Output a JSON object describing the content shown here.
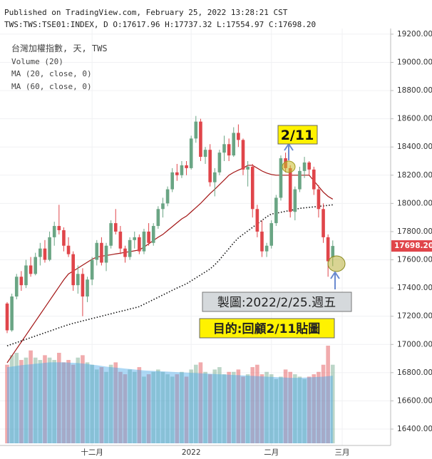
{
  "chart_data": {
    "type": "candlestick",
    "published": "Published on TradingView.com, February 25, 2022 13:28:21 CST",
    "symbol_line": "TWS:TWS:TSE01:INDEX, D O:17617.96 H:17737.32 L:17554.97 C:17698.20",
    "legend_title": "台灣加權指數, 天, TWS",
    "up_color": "#6aa584",
    "down_color": "#e0454a",
    "open": [
      17290,
      17100,
      17340,
      17480,
      17420,
      17560,
      17500,
      17620,
      17680,
      17600,
      17760,
      17840,
      17810,
      17700,
      17640,
      17420,
      17500,
      17340,
      17460,
      17600,
      17720,
      17580,
      17700,
      17860,
      17800,
      17680,
      17620,
      17740,
      17760,
      17660,
      17800,
      17720,
      17840,
      17960,
      18000,
      18100,
      18220,
      18200,
      18270,
      18250,
      18460,
      18580,
      18330,
      18380,
      18150,
      18220,
      18360,
      18420,
      18340,
      18500,
      18450,
      18240,
      18260,
      17960,
      17800,
      17660,
      17700,
      17860,
      18040,
      18320,
      18250,
      17940,
      18100,
      18230,
      18290,
      18240,
      18100,
      17960,
      17760,
      17617.96
    ],
    "high": [
      17300,
      17360,
      17500,
      17520,
      17600,
      17620,
      17650,
      17720,
      17740,
      17800,
      17870,
      17990,
      17830,
      17760,
      17660,
      17560,
      17540,
      17480,
      17620,
      17740,
      17760,
      17720,
      17880,
      17960,
      17840,
      17700,
      17760,
      17800,
      17780,
      17820,
      17860,
      17860,
      17980,
      18040,
      18120,
      18250,
      18280,
      18300,
      18300,
      18480,
      18620,
      18600,
      18400,
      18420,
      18250,
      18380,
      18480,
      18460,
      18540,
      18560,
      18460,
      18300,
      18280,
      17990,
      17880,
      17720,
      17880,
      18060,
      18340,
      18360,
      18270,
      18120,
      18260,
      18330,
      18300,
      18260,
      18130,
      18000,
      17780,
      17737.32
    ],
    "low": [
      17080,
      17090,
      17320,
      17380,
      17400,
      17480,
      17490,
      17560,
      17580,
      17590,
      17700,
      17780,
      17660,
      17620,
      17380,
      17360,
      17200,
      17300,
      17420,
      17560,
      17560,
      17520,
      17680,
      17780,
      17640,
      17580,
      17600,
      17680,
      17640,
      17640,
      17700,
      17700,
      17820,
      17900,
      17980,
      18080,
      18160,
      18180,
      18200,
      18240,
      18430,
      18300,
      18280,
      18120,
      18050,
      18200,
      18300,
      18300,
      18330,
      18400,
      18200,
      18120,
      17900,
      17760,
      17620,
      17620,
      17680,
      17840,
      18020,
      18220,
      17900,
      17880,
      18080,
      18180,
      18200,
      18060,
      17900,
      17720,
      17480,
      17554.97
    ],
    "close": [
      17100,
      17340,
      17480,
      17420,
      17560,
      17500,
      17620,
      17680,
      17600,
      17760,
      17840,
      17810,
      17700,
      17640,
      17420,
      17500,
      17340,
      17460,
      17600,
      17720,
      17580,
      17700,
      17860,
      17800,
      17680,
      17620,
      17740,
      17760,
      17660,
      17800,
      17720,
      17840,
      17960,
      18000,
      18100,
      18220,
      18200,
      18270,
      18250,
      18460,
      18580,
      18330,
      18380,
      18150,
      18220,
      18360,
      18420,
      18340,
      18500,
      18450,
      18240,
      18260,
      17960,
      17800,
      17660,
      17700,
      17860,
      18040,
      18320,
      18250,
      17940,
      18100,
      18230,
      18290,
      18240,
      18100,
      17960,
      17760,
      17590,
      17698.2
    ],
    "series": [
      {
        "name": "MA (20, close, 0)",
        "color": "#a31515",
        "dashed": false,
        "values": [
          16870,
          16919,
          16968,
          17017,
          17066,
          17115,
          17164,
          17213,
          17262,
          17311,
          17360,
          17409,
          17458,
          17500,
          17520,
          17541,
          17562,
          17583,
          17604,
          17620,
          17625,
          17631,
          17636,
          17642,
          17647,
          17653,
          17658,
          17664,
          17670,
          17690,
          17713,
          17737,
          17760,
          17780,
          17808,
          17835,
          17863,
          17890,
          17910,
          17940,
          17970,
          18000,
          18035,
          18070,
          18100,
          18133,
          18166,
          18200,
          18220,
          18236,
          18250,
          18270,
          18270,
          18250,
          18230,
          18215,
          18205,
          18200,
          18200,
          18200,
          18200,
          18200,
          18200,
          18200,
          18200,
          18160,
          18120,
          18080,
          18050,
          18030
        ]
      },
      {
        "name": "MA (60, close, 0)",
        "color": "#111111",
        "dashed": true,
        "values": [
          16990,
          17002,
          17013,
          17025,
          17036,
          17048,
          17060,
          17071,
          17083,
          17094,
          17106,
          17118,
          17129,
          17140,
          17150,
          17158,
          17167,
          17175,
          17184,
          17192,
          17200,
          17209,
          17217,
          17226,
          17234,
          17242,
          17251,
          17259,
          17268,
          17285,
          17301,
          17318,
          17334,
          17351,
          17367,
          17384,
          17400,
          17415,
          17430,
          17451,
          17472,
          17493,
          17514,
          17535,
          17565,
          17600,
          17640,
          17680,
          17720,
          17755,
          17780,
          17805,
          17830,
          17855,
          17880,
          17905,
          17925,
          17930,
          17937,
          17944,
          17950,
          17957,
          17965,
          17968,
          17972,
          17975,
          17979,
          17982,
          17986,
          17990
        ]
      }
    ],
    "volume": {
      "name": "Volume (20)",
      "color": "#4aa8e8",
      "values": [
        3300,
        3700,
        3800,
        3500,
        3600,
        3900,
        3600,
        3500,
        3700,
        3600,
        3500,
        3800,
        3400,
        3500,
        3300,
        3600,
        3700,
        3400,
        3300,
        3100,
        3200,
        3000,
        3300,
        3400,
        3000,
        2900,
        3100,
        3000,
        3200,
        2800,
        2900,
        3000,
        3100,
        3000,
        2900,
        2800,
        2900,
        3000,
        2800,
        3100,
        3300,
        3400,
        3000,
        2900,
        3100,
        3200,
        2900,
        3000,
        3000,
        3100,
        2800,
        2900,
        3200,
        3300,
        2900,
        3000,
        2900,
        2700,
        2800,
        3100,
        3000,
        2900,
        2800,
        2700,
        2800,
        2900,
        3000,
        3300,
        4100,
        3300
      ],
      "ma_values": [
        3200,
        3220,
        3250,
        3280,
        3300,
        3320,
        3340,
        3360,
        3380,
        3400,
        3400,
        3400,
        3400,
        3390,
        3380,
        3370,
        3350,
        3330,
        3300,
        3280,
        3250,
        3220,
        3200,
        3180,
        3160,
        3140,
        3120,
        3100,
        3080,
        3060,
        3050,
        3040,
        3030,
        3020,
        3010,
        3000,
        2990,
        2980,
        2970,
        2960,
        2950,
        2940,
        2930,
        2920,
        2910,
        2900,
        2890,
        2880,
        2870,
        2860,
        2850,
        2840,
        2830,
        2820,
        2810,
        2800,
        2790,
        2780,
        2770,
        2760,
        2750,
        2750,
        2750,
        2760,
        2770,
        2780,
        2790,
        2800,
        2820,
        2840
      ]
    },
    "ylim": [
      16309,
      19240
    ],
    "yticks": [
      {
        "value": 16400,
        "label": "16400.00"
      },
      {
        "value": 16600,
        "label": "16600.00"
      },
      {
        "value": 16800,
        "label": "16800.00"
      },
      {
        "value": 17000,
        "label": "17000.00"
      },
      {
        "value": 17200,
        "label": "17200.00"
      },
      {
        "value": 17400,
        "label": "17400.00"
      },
      {
        "value": 17600,
        "label": "17600.00"
      },
      {
        "value": 17800,
        "label": "17800.00"
      },
      {
        "value": 18000,
        "label": "18000.00"
      },
      {
        "value": 18200,
        "label": "18200.00"
      },
      {
        "value": 18400,
        "label": "18400.00"
      },
      {
        "value": 18600,
        "label": "18600.00"
      },
      {
        "value": 18800,
        "label": "18800.00"
      },
      {
        "value": 19000,
        "label": "19000.00"
      },
      {
        "value": 19200,
        "label": "19200.00"
      }
    ],
    "xticks": [
      {
        "value": 18,
        "label": "十二月"
      },
      {
        "value": 39,
        "label": "2022"
      },
      {
        "value": 56,
        "label": "二月"
      },
      {
        "value": 71,
        "label": "三月"
      }
    ],
    "last_price": {
      "value": 17698.2,
      "label": "17698.20"
    },
    "grid": true,
    "annotations": [
      "2/11",
      "製圖:2022/2/25.週五",
      "目的:回顧2/11貼圖"
    ]
  }
}
